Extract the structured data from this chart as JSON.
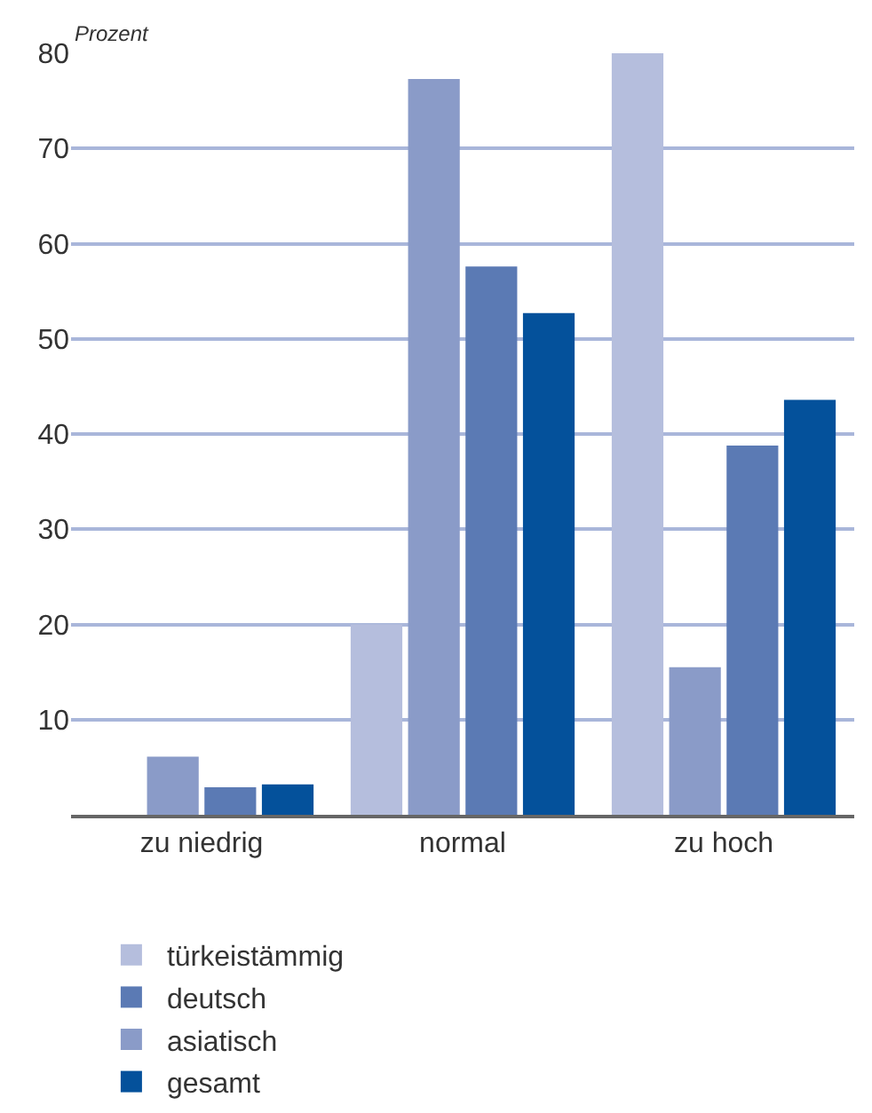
{
  "chart_data": {
    "type": "bar",
    "ylabel": "Prozent",
    "categories": [
      "zu niedrig",
      "normal",
      "zu hoch"
    ],
    "series": [
      {
        "name": "türkeistämmig",
        "color": "#b5bedd",
        "values": [
          0,
          20,
          80
        ]
      },
      {
        "name": "asiatisch",
        "color": "#8a9bc8",
        "values": [
          6.1,
          77.3,
          15.5
        ]
      },
      {
        "name": "deutsch",
        "color": "#5b7ab4",
        "values": [
          2.9,
          57.6,
          38.8
        ]
      },
      {
        "name": "gesamt",
        "color": "#04519b",
        "values": [
          3.2,
          52.7,
          43.6
        ]
      }
    ],
    "ylim": [
      0,
      80
    ],
    "yticks": [
      10,
      20,
      30,
      40,
      50,
      60,
      70,
      80
    ],
    "grid": "y",
    "legend": "bottom"
  }
}
